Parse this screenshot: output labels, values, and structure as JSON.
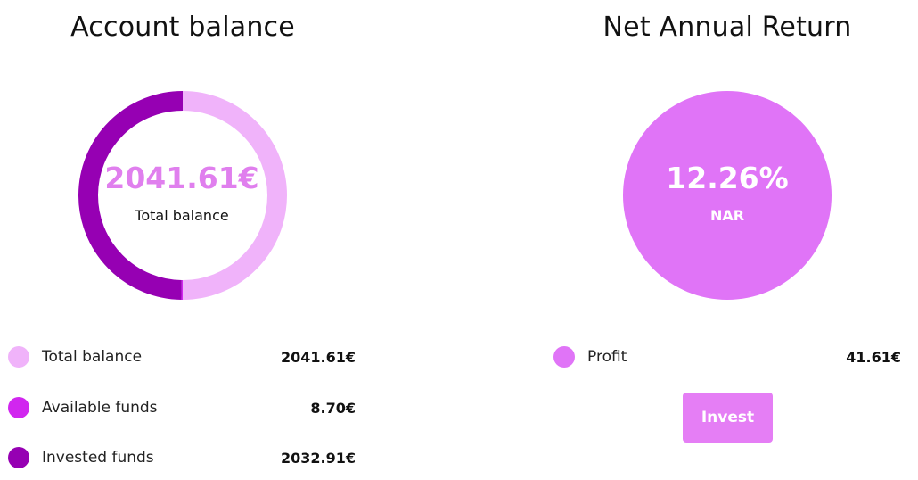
{
  "colors": {
    "total_balance": "#f0b3fa",
    "available_funds": "#d126ef",
    "invested_funds": "#9600b3",
    "nar_circle": "#e074f7",
    "invest_button": "#e57ef5",
    "balance_value_text": "#e07fee"
  },
  "account_balance": {
    "title": "Account balance",
    "donut": {
      "value": "2041.61€",
      "caption": "Total balance",
      "segments": [
        {
          "name": "Total balance",
          "amount": 2041.61,
          "color_key": "total_balance"
        },
        {
          "name": "Available funds",
          "amount": 8.7,
          "color_key": "available_funds"
        },
        {
          "name": "Invested funds",
          "amount": 2032.91,
          "color_key": "invested_funds"
        }
      ]
    },
    "legend": [
      {
        "label": "Total balance",
        "value": "2041.61€"
      },
      {
        "label": "Available funds",
        "value": "8.70€"
      },
      {
        "label": "Invested funds",
        "value": "2032.91€"
      }
    ]
  },
  "net_annual_return": {
    "title": "Net Annual Return",
    "value": "12.26%",
    "caption": "NAR",
    "legend": [
      {
        "label": "Profit",
        "value": "41.61€"
      }
    ],
    "invest_label": "Invest"
  }
}
